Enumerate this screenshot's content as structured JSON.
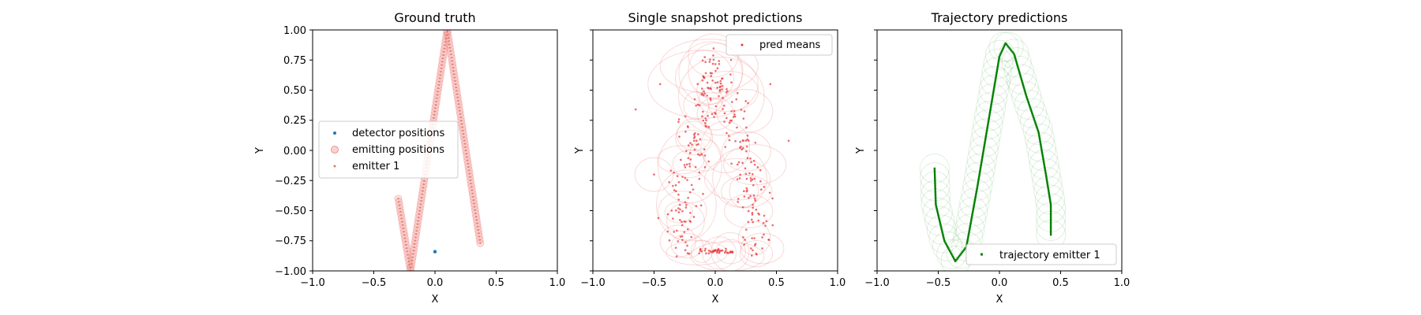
{
  "figure": {
    "panels": [
      {
        "title": "Ground truth",
        "xlabel": "X",
        "ylabel": "Y"
      },
      {
        "title": "Single snapshot predictions",
        "xlabel": "X",
        "ylabel": "Y"
      },
      {
        "title": "Trajectory predictions",
        "xlabel": "X",
        "ylabel": "Y"
      }
    ]
  },
  "chart_data": [
    {
      "type": "scatter",
      "title": "Ground truth",
      "xlabel": "X",
      "ylabel": "Y",
      "xlim": [
        -1.0,
        1.0
      ],
      "ylim": [
        -1.0,
        1.0
      ],
      "xticks": [
        "−1.0",
        "−0.5",
        "0.0",
        "0.5",
        "1.0"
      ],
      "yticks": [
        "1.00",
        "0.75",
        "0.50",
        "0.25",
        "0.00",
        "−0.25",
        "−0.50",
        "−0.75",
        "−1.00"
      ],
      "legend": {
        "position": "center-left",
        "entries": [
          "detector positions",
          "emitting positions",
          "emitter 1"
        ]
      },
      "series": [
        {
          "name": "detector positions",
          "color": "#1f77b4",
          "points": [
            [
              0.0,
              -0.84
            ]
          ]
        },
        {
          "name": "emitting positions",
          "color": "#f4a6a6",
          "path": [
            [
              -0.3,
              -0.4
            ],
            [
              -0.2,
              -1.0
            ],
            [
              0.1,
              1.0
            ],
            [
              0.37,
              -0.77
            ]
          ]
        },
        {
          "name": "emitter 1",
          "color": "#e07a5f",
          "path": [
            [
              -0.3,
              -0.4
            ],
            [
              -0.2,
              -1.0
            ],
            [
              0.1,
              1.0
            ],
            [
              0.37,
              -0.77
            ]
          ]
        }
      ]
    },
    {
      "type": "scatter",
      "title": "Single snapshot predictions",
      "xlabel": "X",
      "ylabel": "Y",
      "xlim": [
        -1.0,
        1.0
      ],
      "ylim": [
        -1.0,
        1.0
      ],
      "xticks": [
        "−1.0",
        "−0.5",
        "0.0",
        "0.5",
        "1.0"
      ],
      "legend": {
        "position": "top-right",
        "entries": [
          "pred means"
        ]
      },
      "series": [
        {
          "name": "pred means",
          "color": "#e8383b",
          "approx_count": 300
        }
      ]
    },
    {
      "type": "scatter",
      "title": "Trajectory predictions",
      "xlabel": "X",
      "ylabel": "Y",
      "xlim": [
        -1.0,
        1.0
      ],
      "ylim": [
        -1.0,
        1.0
      ],
      "xticks": [
        "−1.0",
        "−0.5",
        "0.0",
        "0.5",
        "1.0"
      ],
      "legend": {
        "position": "bottom-right",
        "entries": [
          "trajectory emitter 1"
        ]
      },
      "series": [
        {
          "name": "trajectory emitter 1",
          "color": "#008000",
          "path": [
            [
              -0.53,
              -0.15
            ],
            [
              -0.52,
              -0.45
            ],
            [
              -0.45,
              -0.75
            ],
            [
              -0.36,
              -0.92
            ],
            [
              -0.27,
              -0.8
            ],
            [
              -0.18,
              -0.3
            ],
            [
              -0.08,
              0.3
            ],
            [
              0.0,
              0.78
            ],
            [
              0.05,
              0.89
            ],
            [
              0.12,
              0.8
            ],
            [
              0.22,
              0.45
            ],
            [
              0.32,
              0.15
            ],
            [
              0.38,
              -0.2
            ],
            [
              0.42,
              -0.45
            ],
            [
              0.42,
              -0.7
            ]
          ]
        }
      ]
    }
  ]
}
